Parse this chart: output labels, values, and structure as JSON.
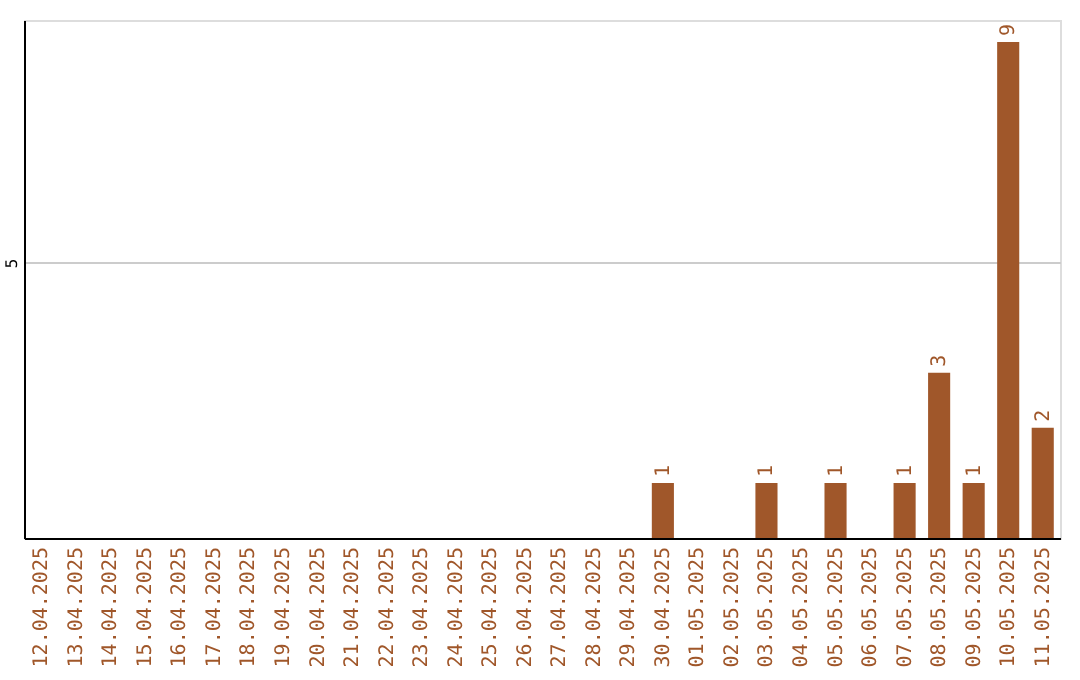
{
  "chart_data": {
    "type": "bar",
    "categories": [
      "12.04.2025",
      "13.04.2025",
      "14.04.2025",
      "15.04.2025",
      "16.04.2025",
      "17.04.2025",
      "18.04.2025",
      "19.04.2025",
      "20.04.2025",
      "21.04.2025",
      "22.04.2025",
      "23.04.2025",
      "24.04.2025",
      "25.04.2025",
      "26.04.2025",
      "27.04.2025",
      "28.04.2025",
      "29.04.2025",
      "30.04.2025",
      "01.05.2025",
      "02.05.2025",
      "03.05.2025",
      "04.05.2025",
      "05.05.2025",
      "06.05.2025",
      "07.05.2025",
      "08.05.2025",
      "09.05.2025",
      "10.05.2025",
      "11.05.2025"
    ],
    "values": [
      null,
      null,
      null,
      null,
      null,
      null,
      null,
      null,
      null,
      null,
      null,
      null,
      null,
      null,
      null,
      null,
      null,
      null,
      1,
      null,
      null,
      1,
      null,
      1,
      null,
      1,
      3,
      1,
      9,
      2
    ],
    "data_labels": true,
    "color": "#a0572a",
    "ylim": [
      0,
      9.4
    ],
    "yticks": [
      5
    ],
    "grid": "y"
  }
}
